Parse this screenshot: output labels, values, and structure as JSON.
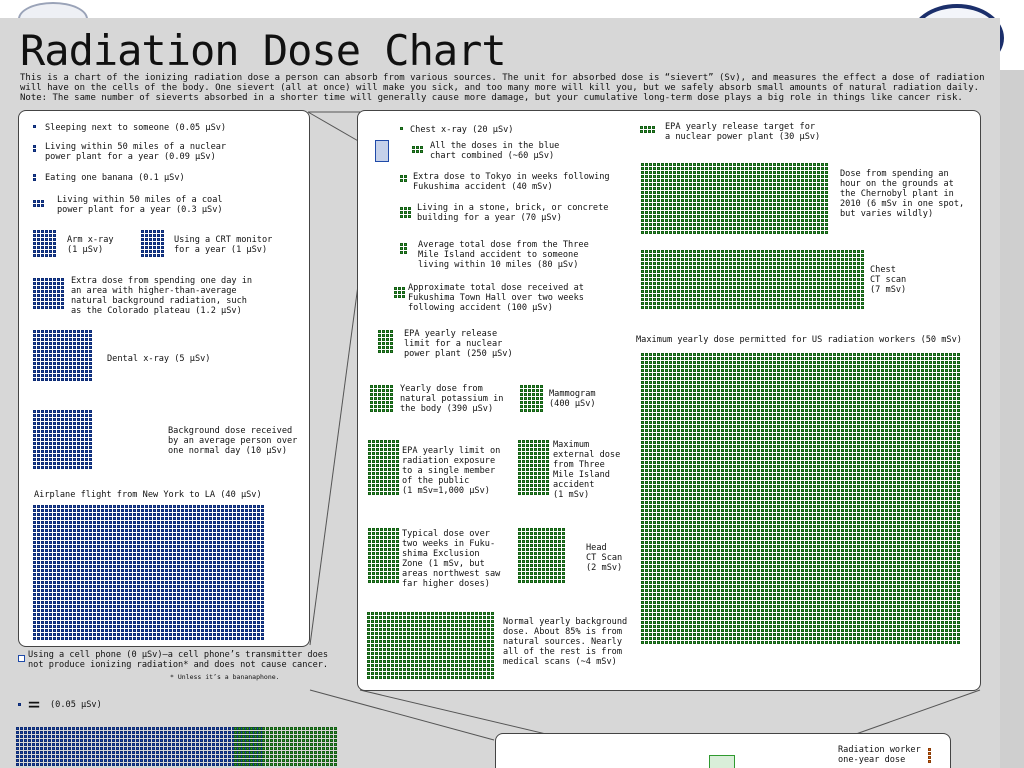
{
  "chart": {
    "title": "Radiation Dose Chart",
    "intro_lines": [
      "This is a chart of the ionizing radiation dose a person can absorb from various sources. The unit for absorbed dose is “sievert” (Sv), and measures the effect a dose of radiation",
      "will have on the cells of the body. One sievert (all at once) will make you sick, and too many more will kill you, but we safely absorb small amounts of natural radiation daily.",
      "Note: The same number of sieverts absorbed in a shorter time will generally cause more damage, but your cumulative long-term dose plays a big role in things like cancer risk."
    ],
    "colors": {
      "blue": "#1f4aa8",
      "blue_dark": "#0d2b74",
      "green": "#2f9a2f",
      "green_dark": "#145c14",
      "orange": "#e36b12"
    }
  },
  "blue_panel": {
    "items": [
      {
        "label": "Sleeping next to someone (0.05 µSv)"
      },
      {
        "label": "Living within 50 miles of a nuclear\npower plant for a year (0.09 µSv)"
      },
      {
        "label": "Eating one banana (0.1 µSv)"
      },
      {
        "label": "Living within 50 miles of a coal\npower plant for a year (0.3 µSv)"
      },
      {
        "label": "Arm x-ray\n(1 µSv)"
      },
      {
        "label": "Using a CRT monitor\nfor a year (1 µSv)"
      },
      {
        "label": "Extra dose from spending one day in\nan area with higher-than-average\nnatural background radiation, such\nas the Colorado plateau (1.2 µSv)"
      },
      {
        "label": "Dental x-ray (5 µSv)"
      },
      {
        "label": "Background dose received\nby an average person over\none normal day (10 µSv)"
      },
      {
        "label": "Airplane flight from New York to LA (40 µSv)"
      }
    ],
    "cell_phone_note": "Using a cell phone (0 µSv)—a cell phone’s transmitter does\nnot produce ionizing radiation* and does not cause cancer.",
    "footnote": "* Unless it’s a bananaphone."
  },
  "green_panel": {
    "items": [
      {
        "label": "Chest x-ray (20 µSv)"
      },
      {
        "label": "All the doses in the blue\nchart combined (~60 µSv)"
      },
      {
        "label": "Extra dose to Tokyo in weeks following\nFukushima accident (40 mSv)"
      },
      {
        "label": "Living in a stone, brick, or concrete\nbuilding for a year (70 µSv)"
      },
      {
        "label": "Average total dose from the Three\nMile Island accident to someone\nliving within 10 miles (80 µSv)"
      },
      {
        "label": "Approximate total dose received at\nFukushima Town Hall over two weeks\nfollowing accident (100 µSv)"
      },
      {
        "label": "EPA yearly release\nlimit for a nuclear\npower plant (250 µSv)"
      },
      {
        "label": "Yearly dose from\nnatural potassium in\nthe body (390 µSv)"
      },
      {
        "label": "Mammogram\n(400 µSv)"
      },
      {
        "label": "EPA yearly limit on\nradiation exposure\nto a single member\nof the public\n(1 mSv=1,000 µSv)"
      },
      {
        "label": "Maximum\nexternal dose\nfrom Three\nMile Island\naccident\n(1 mSv)"
      },
      {
        "label": "Typical dose over\ntwo weeks in Fuku-\nshima Exclusion\nZone (1 mSv, but\nareas northwest saw\nfar higher doses)"
      },
      {
        "label": "Head\nCT Scan\n(2 mSv)"
      },
      {
        "label": "Normal yearly background\ndose. About 85% is from\nnatural sources. Nearly\nall of the rest is from\nmedical scans (~4 mSv)"
      },
      {
        "label": "EPA yearly release target for\na nuclear power plant (30 µSv)"
      },
      {
        "label": "Dose from spending an\nhour on the grounds at\nthe Chernobyl plant in\n2010 (6 mSv in one spot,\nbut varies wildly)"
      },
      {
        "label": "Chest\nCT scan\n(7 mSv)"
      },
      {
        "label": "Maximum yearly dose permitted for US radiation workers (50 mSv)"
      }
    ]
  },
  "bottom": {
    "legend_label": "(0.05 µSv)",
    "legend_equals": "=",
    "orange_label": "Radiation worker\none-year dose"
  }
}
